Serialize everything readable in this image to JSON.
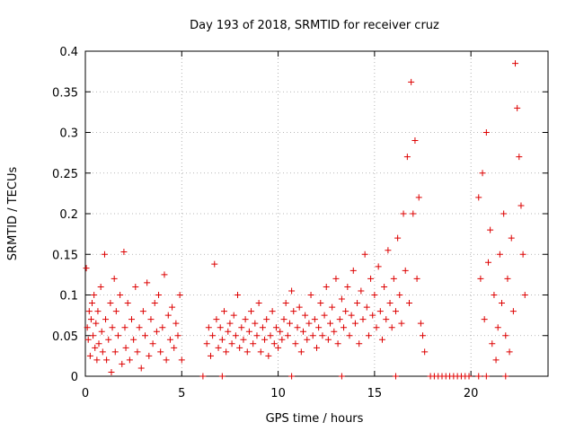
{
  "chart_data": {
    "type": "scatter",
    "title": "Day 193 of 2018, SRMTID for receiver cruz",
    "xlabel": "GPS time / hours",
    "ylabel": "SRMTID / TECUs",
    "xlim": [
      0,
      24
    ],
    "ylim": [
      0,
      0.4
    ],
    "xticks": [
      0,
      5,
      10,
      15,
      20
    ],
    "yticks": [
      0,
      0.05,
      0.1,
      0.15,
      0.2,
      0.25,
      0.3,
      0.35,
      0.4
    ],
    "xtick_labels": [
      "0",
      "5",
      "10",
      "15",
      "20"
    ],
    "ytick_labels": [
      "0",
      "0.05",
      "0.1",
      "0.15",
      "0.2",
      "0.25",
      "0.3",
      "0.35",
      "0.4"
    ],
    "grid": true,
    "marker": "+",
    "color": "#dd0000",
    "series": [
      {
        "name": "",
        "points": [
          [
            0.05,
            0.133
          ],
          [
            0.1,
            0.06
          ],
          [
            0.15,
            0.045
          ],
          [
            0.2,
            0.08
          ],
          [
            0.25,
            0.025
          ],
          [
            0.3,
            0.07
          ],
          [
            0.35,
            0.09
          ],
          [
            0.4,
            0.05
          ],
          [
            0.45,
            0.1
          ],
          [
            0.5,
            0.035
          ],
          [
            0.55,
            0.065
          ],
          [
            0.6,
            0.02
          ],
          [
            0.65,
            0.08
          ],
          [
            0.7,
            0.04
          ],
          [
            0.8,
            0.11
          ],
          [
            0.85,
            0.055
          ],
          [
            0.9,
            0.03
          ],
          [
            1.0,
            0.15
          ],
          [
            1.05,
            0.07
          ],
          [
            1.1,
            0.02
          ],
          [
            1.2,
            0.045
          ],
          [
            1.3,
            0.09
          ],
          [
            1.35,
            0.005
          ],
          [
            1.4,
            0.06
          ],
          [
            1.5,
            0.12
          ],
          [
            1.55,
            0.03
          ],
          [
            1.6,
            0.08
          ],
          [
            1.7,
            0.05
          ],
          [
            1.8,
            0.1
          ],
          [
            1.9,
            0.015
          ],
          [
            2.0,
            0.153
          ],
          [
            2.05,
            0.06
          ],
          [
            2.1,
            0.035
          ],
          [
            2.2,
            0.09
          ],
          [
            2.3,
            0.02
          ],
          [
            2.4,
            0.07
          ],
          [
            2.5,
            0.045
          ],
          [
            2.6,
            0.11
          ],
          [
            2.7,
            0.03
          ],
          [
            2.8,
            0.06
          ],
          [
            2.9,
            0.01
          ],
          [
            3.0,
            0.08
          ],
          [
            3.1,
            0.05
          ],
          [
            3.2,
            0.115
          ],
          [
            3.3,
            0.025
          ],
          [
            3.4,
            0.07
          ],
          [
            3.5,
            0.04
          ],
          [
            3.6,
            0.09
          ],
          [
            3.7,
            0.055
          ],
          [
            3.8,
            0.1
          ],
          [
            3.9,
            0.03
          ],
          [
            4.0,
            0.06
          ],
          [
            4.1,
            0.125
          ],
          [
            4.2,
            0.02
          ],
          [
            4.3,
            0.075
          ],
          [
            4.4,
            0.045
          ],
          [
            4.5,
            0.085
          ],
          [
            4.6,
            0.035
          ],
          [
            4.7,
            0.065
          ],
          [
            4.8,
            0.05
          ],
          [
            4.9,
            0.1
          ],
          [
            5.0,
            0.02
          ],
          [
            6.3,
            0.04
          ],
          [
            6.4,
            0.06
          ],
          [
            6.5,
            0.025
          ],
          [
            6.6,
            0.05
          ],
          [
            6.7,
            0.138
          ],
          [
            6.8,
            0.07
          ],
          [
            6.9,
            0.035
          ],
          [
            7.0,
            0.06
          ],
          [
            7.1,
            0.045
          ],
          [
            7.2,
            0.08
          ],
          [
            7.3,
            0.03
          ],
          [
            7.4,
            0.055
          ],
          [
            7.5,
            0.065
          ],
          [
            7.6,
            0.04
          ],
          [
            7.7,
            0.075
          ],
          [
            7.8,
            0.05
          ],
          [
            7.9,
            0.1
          ],
          [
            8.0,
            0.035
          ],
          [
            8.1,
            0.06
          ],
          [
            8.2,
            0.045
          ],
          [
            8.3,
            0.07
          ],
          [
            8.4,
            0.03
          ],
          [
            8.5,
            0.055
          ],
          [
            8.6,
            0.08
          ],
          [
            8.7,
            0.04
          ],
          [
            8.8,
            0.065
          ],
          [
            8.9,
            0.05
          ],
          [
            9.0,
            0.09
          ],
          [
            9.1,
            0.03
          ],
          [
            9.2,
            0.06
          ],
          [
            9.3,
            0.045
          ],
          [
            9.4,
            0.07
          ],
          [
            9.5,
            0.025
          ],
          [
            9.6,
            0.05
          ],
          [
            9.7,
            0.08
          ],
          [
            9.8,
            0.04
          ],
          [
            9.9,
            0.06
          ],
          [
            10.0,
            0.035
          ],
          [
            10.1,
            0.055
          ],
          [
            10.2,
            0.045
          ],
          [
            10.3,
            0.07
          ],
          [
            10.4,
            0.09
          ],
          [
            10.5,
            0.05
          ],
          [
            10.6,
            0.065
          ],
          [
            10.7,
            0.105
          ],
          [
            10.8,
            0.08
          ],
          [
            10.9,
            0.04
          ],
          [
            11.0,
            0.06
          ],
          [
            11.1,
            0.085
          ],
          [
            11.2,
            0.03
          ],
          [
            11.3,
            0.055
          ],
          [
            11.4,
            0.075
          ],
          [
            11.5,
            0.045
          ],
          [
            11.6,
            0.065
          ],
          [
            11.7,
            0.1
          ],
          [
            11.8,
            0.05
          ],
          [
            11.9,
            0.07
          ],
          [
            12.0,
            0.035
          ],
          [
            12.1,
            0.06
          ],
          [
            12.2,
            0.09
          ],
          [
            12.3,
            0.05
          ],
          [
            12.4,
            0.075
          ],
          [
            12.5,
            0.11
          ],
          [
            12.6,
            0.045
          ],
          [
            12.7,
            0.065
          ],
          [
            12.8,
            0.085
          ],
          [
            12.9,
            0.055
          ],
          [
            13.0,
            0.12
          ],
          [
            13.1,
            0.04
          ],
          [
            13.2,
            0.07
          ],
          [
            13.3,
            0.095
          ],
          [
            13.4,
            0.06
          ],
          [
            13.5,
            0.08
          ],
          [
            13.6,
            0.11
          ],
          [
            13.7,
            0.05
          ],
          [
            13.8,
            0.075
          ],
          [
            13.9,
            0.13
          ],
          [
            14.0,
            0.065
          ],
          [
            14.1,
            0.09
          ],
          [
            14.2,
            0.04
          ],
          [
            14.3,
            0.105
          ],
          [
            14.4,
            0.07
          ],
          [
            14.5,
            0.15
          ],
          [
            14.6,
            0.085
          ],
          [
            14.7,
            0.05
          ],
          [
            14.8,
            0.12
          ],
          [
            14.9,
            0.075
          ],
          [
            15.0,
            0.1
          ],
          [
            15.1,
            0.06
          ],
          [
            15.2,
            0.135
          ],
          [
            15.3,
            0.08
          ],
          [
            15.4,
            0.045
          ],
          [
            15.5,
            0.11
          ],
          [
            15.6,
            0.07
          ],
          [
            15.7,
            0.155
          ],
          [
            15.8,
            0.09
          ],
          [
            15.9,
            0.06
          ],
          [
            16.0,
            0.12
          ],
          [
            16.1,
            0.08
          ],
          [
            16.2,
            0.17
          ],
          [
            16.3,
            0.1
          ],
          [
            16.4,
            0.065
          ],
          [
            16.5,
            0.2
          ],
          [
            16.6,
            0.13
          ],
          [
            16.7,
            0.27
          ],
          [
            16.8,
            0.09
          ],
          [
            16.9,
            0.362
          ],
          [
            17.0,
            0.2
          ],
          [
            17.1,
            0.29
          ],
          [
            17.2,
            0.12
          ],
          [
            17.3,
            0.22
          ],
          [
            17.4,
            0.065
          ],
          [
            17.5,
            0.05
          ],
          [
            17.6,
            0.03
          ],
          [
            20.4,
            0.22
          ],
          [
            20.5,
            0.12
          ],
          [
            20.6,
            0.25
          ],
          [
            20.7,
            0.07
          ],
          [
            20.8,
            0.3
          ],
          [
            20.9,
            0.14
          ],
          [
            21.0,
            0.18
          ],
          [
            21.1,
            0.04
          ],
          [
            21.2,
            0.1
          ],
          [
            21.3,
            0.02
          ],
          [
            21.4,
            0.06
          ],
          [
            21.5,
            0.15
          ],
          [
            21.6,
            0.09
          ],
          [
            21.7,
            0.2
          ],
          [
            21.8,
            0.05
          ],
          [
            21.9,
            0.12
          ],
          [
            22.0,
            0.03
          ],
          [
            22.1,
            0.17
          ],
          [
            22.2,
            0.08
          ],
          [
            22.3,
            0.385
          ],
          [
            22.4,
            0.33
          ],
          [
            22.5,
            0.27
          ],
          [
            22.6,
            0.21
          ],
          [
            22.7,
            0.15
          ],
          [
            22.8,
            0.1
          ]
        ]
      },
      {
        "name": "",
        "points": [
          [
            6.1,
            0.0
          ],
          [
            7.1,
            0.0
          ],
          [
            10.7,
            0.0
          ],
          [
            13.3,
            0.0
          ],
          [
            16.1,
            0.0
          ],
          [
            17.9,
            0.0
          ],
          [
            18.1,
            0.0
          ],
          [
            18.3,
            0.0
          ],
          [
            18.5,
            0.0
          ],
          [
            18.7,
            0.0
          ],
          [
            18.9,
            0.0
          ],
          [
            19.1,
            0.0
          ],
          [
            19.3,
            0.0
          ],
          [
            19.5,
            0.0
          ],
          [
            19.7,
            0.0
          ],
          [
            19.9,
            0.0
          ],
          [
            20.4,
            0.0
          ],
          [
            20.8,
            0.0
          ],
          [
            21.8,
            0.0
          ]
        ]
      }
    ]
  }
}
